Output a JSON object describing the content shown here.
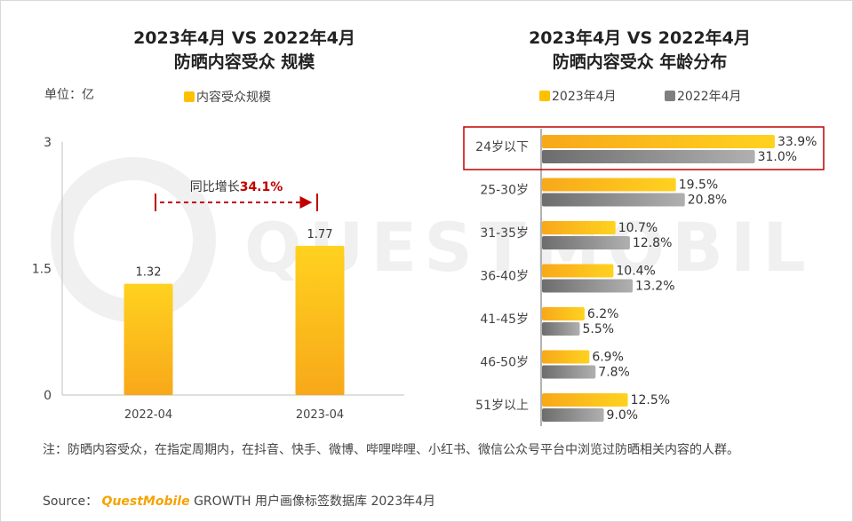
{
  "left_chart": {
    "title_line1": "2023年4月 VS 2022年4月",
    "title_line2": "防晒内容受众 规模",
    "unit": "单位：亿",
    "legend": "内容受众规模",
    "annotation_prefix": "同比增长",
    "annotation_value": "34.1%"
  },
  "right_chart": {
    "title_line1": "2023年4月 VS 2022年4月",
    "title_line2": "防晒内容受众 年龄分布",
    "legend_2023": "2023年4月",
    "legend_2022": "2022年4月"
  },
  "watermark": "QUESTMOBILE",
  "colors": {
    "gold": "#ffc000",
    "gray": "#7f7f7f",
    "highlight": "#c00000",
    "accent_red": "#c00000"
  },
  "chart_data": [
    {
      "type": "bar",
      "title": "2023年4月 VS 2022年4月 防晒内容受众 规模",
      "categories": [
        "2022-04",
        "2023-04"
      ],
      "series": [
        {
          "name": "内容受众规模",
          "values": [
            1.32,
            1.77
          ]
        }
      ],
      "data_labels": [
        "1.32",
        "1.77"
      ],
      "yticks": [
        "0",
        "1.5",
        "3"
      ],
      "ylim": [
        0,
        3
      ],
      "ylabel": "单位：亿",
      "grid": false,
      "legend_position": "top"
    },
    {
      "type": "bar",
      "orientation": "horizontal",
      "title": "2023年4月 VS 2022年4月 防晒内容受众 年龄分布",
      "categories": [
        "24岁以下",
        "25-30岁",
        "31-35岁",
        "36-40岁",
        "41-45岁",
        "46-50岁",
        "51岁以上"
      ],
      "series": [
        {
          "name": "2023年4月",
          "values": [
            33.9,
            19.5,
            10.7,
            10.4,
            6.2,
            6.9,
            12.5
          ],
          "labels": [
            "33.9%",
            "19.5%",
            "10.7%",
            "10.4%",
            "6.2%",
            "6.9%",
            "12.5%"
          ]
        },
        {
          "name": "2022年4月",
          "values": [
            31.0,
            20.8,
            12.8,
            13.2,
            5.5,
            7.8,
            9.0
          ],
          "labels": [
            "31.0%",
            "20.8%",
            "12.8%",
            "13.2%",
            "5.5%",
            "7.8%",
            "9.0%"
          ]
        }
      ],
      "highlighted_category": "24岁以下",
      "grid": false,
      "legend_position": "top"
    }
  ],
  "footer": {
    "note": "注：防晒内容受众，在指定周期内，在抖音、快手、微博、哔哩哔哩、小红书、微信公众号平台中浏览过防晒相关内容的人群。",
    "source_label": "Source：",
    "source_brand": "QuestMobile",
    "source_rest": " GROWTH 用户画像标签数据库 2023年4月"
  }
}
